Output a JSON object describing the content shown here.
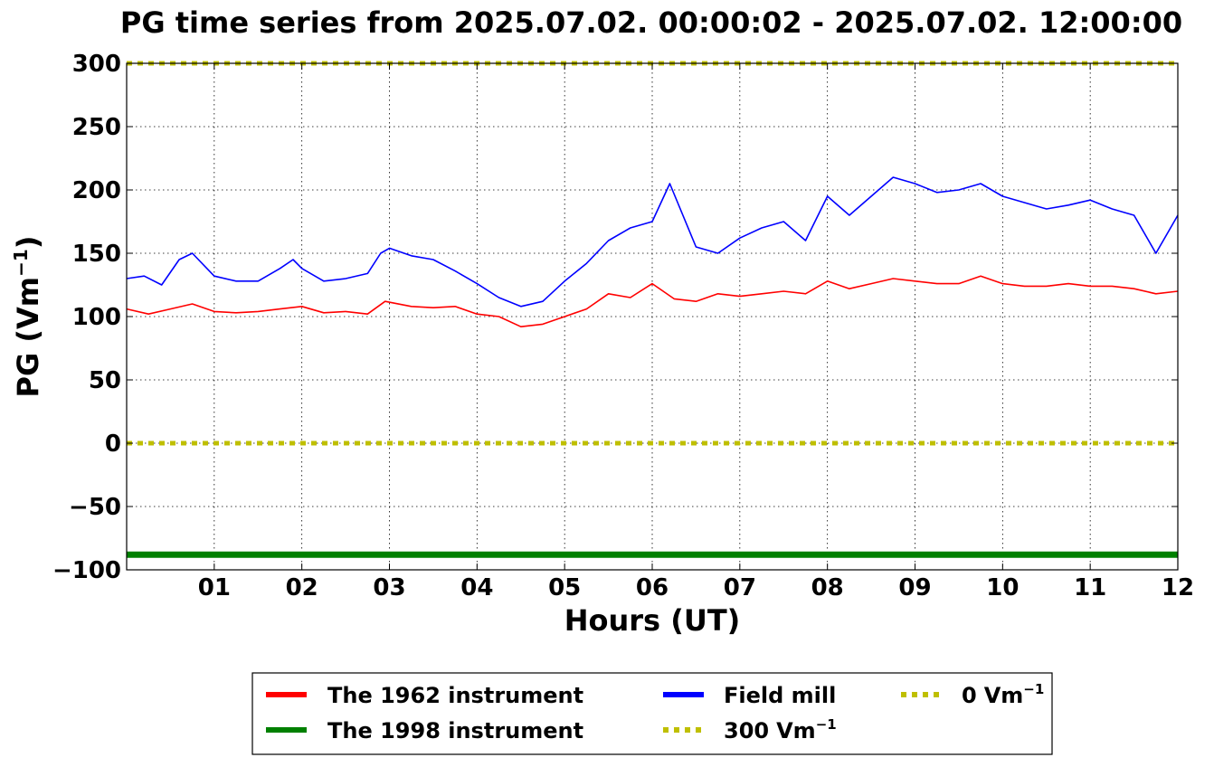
{
  "chart_data": {
    "type": "line",
    "title": "PG time series from 2025.07.02. 00:00:02 - 2025.07.02. 12:00:00",
    "xlabel": "Hours (UT)",
    "ylabel_prefix": "PG (",
    "ylabel_unit": "Vm",
    "ylabel_exp": "−1",
    "ylabel_suffix": ")",
    "xlim": [
      0,
      12
    ],
    "ylim": [
      -100,
      300
    ],
    "grid": true,
    "x_ticks": [
      {
        "v": 1,
        "label": "01"
      },
      {
        "v": 2,
        "label": "02"
      },
      {
        "v": 3,
        "label": "03"
      },
      {
        "v": 4,
        "label": "04"
      },
      {
        "v": 5,
        "label": "05"
      },
      {
        "v": 6,
        "label": "06"
      },
      {
        "v": 7,
        "label": "07"
      },
      {
        "v": 8,
        "label": "08"
      },
      {
        "v": 9,
        "label": "09"
      },
      {
        "v": 10,
        "label": "10"
      },
      {
        "v": 11,
        "label": "11"
      },
      {
        "v": 12,
        "label": "12"
      }
    ],
    "y_ticks": [
      {
        "v": 300,
        "label": "300"
      },
      {
        "v": 250,
        "label": "250"
      },
      {
        "v": 200,
        "label": "200"
      },
      {
        "v": 150,
        "label": "150"
      },
      {
        "v": 100,
        "label": "100"
      },
      {
        "v": 50,
        "label": "50"
      },
      {
        "v": 0,
        "label": "0"
      },
      {
        "v": -50,
        "label": "−50"
      },
      {
        "v": -100,
        "label": "−100"
      }
    ],
    "legend_position": "below",
    "series": [
      {
        "name": "The 1962 instrument",
        "color": "#ff0000",
        "style": "solid",
        "x": [
          0,
          0.25,
          0.5,
          0.75,
          1,
          1.25,
          1.5,
          1.75,
          2,
          2.25,
          2.5,
          2.75,
          2.95,
          3.25,
          3.5,
          3.75,
          4,
          4.25,
          4.5,
          4.75,
          5,
          5.25,
          5.5,
          5.75,
          6,
          6.25,
          6.5,
          6.75,
          7,
          7.25,
          7.5,
          7.75,
          8,
          8.25,
          8.5,
          8.75,
          9,
          9.25,
          9.5,
          9.75,
          10,
          10.25,
          10.5,
          10.75,
          11,
          11.25,
          11.5,
          11.75,
          12
        ],
        "y": [
          106,
          102,
          106,
          110,
          104,
          103,
          104,
          106,
          108,
          103,
          104,
          102,
          112,
          108,
          107,
          108,
          102,
          100,
          92,
          94,
          100,
          106,
          118,
          115,
          126,
          114,
          112,
          118,
          116,
          118,
          120,
          118,
          128,
          122,
          126,
          130,
          128,
          126,
          126,
          132,
          126,
          124,
          124,
          126,
          124,
          124,
          122,
          118,
          120
        ]
      },
      {
        "name": "Field mill",
        "color": "#0000ff",
        "style": "solid",
        "x": [
          0,
          0.2,
          0.4,
          0.6,
          0.75,
          1,
          1.25,
          1.5,
          1.75,
          1.9,
          2,
          2.25,
          2.5,
          2.75,
          2.9,
          3,
          3.25,
          3.5,
          3.75,
          4,
          4.25,
          4.5,
          4.75,
          5,
          5.25,
          5.5,
          5.75,
          6,
          6.2,
          6.5,
          6.75,
          7,
          7.25,
          7.5,
          7.75,
          8,
          8.25,
          8.5,
          8.75,
          9,
          9.25,
          9.5,
          9.75,
          10,
          10.25,
          10.5,
          10.75,
          11,
          11.25,
          11.5,
          11.75,
          12
        ],
        "y": [
          130,
          132,
          125,
          145,
          150,
          132,
          128,
          128,
          138,
          145,
          138,
          128,
          130,
          134,
          150,
          154,
          148,
          145,
          136,
          126,
          115,
          108,
          112,
          128,
          142,
          160,
          170,
          175,
          205,
          155,
          150,
          162,
          170,
          175,
          160,
          195,
          180,
          195,
          210,
          205,
          198,
          200,
          205,
          195,
          190,
          185,
          188,
          192,
          185,
          180,
          150,
          180
        ]
      },
      {
        "name": "The 1998 instrument",
        "color": "#008000",
        "style": "solid",
        "x": [
          0,
          12
        ],
        "y": [
          -88,
          -88
        ]
      },
      {
        "name": "300 Vm−1",
        "legend_value": "300",
        "color": "#bfbf00",
        "style": "dotted",
        "x": [
          0,
          12
        ],
        "y": [
          300,
          300
        ]
      },
      {
        "name": "0 Vm−1",
        "legend_value": "0",
        "color": "#bfbf00",
        "style": "dotted",
        "x": [
          0,
          12
        ],
        "y": [
          0,
          0
        ]
      }
    ]
  }
}
